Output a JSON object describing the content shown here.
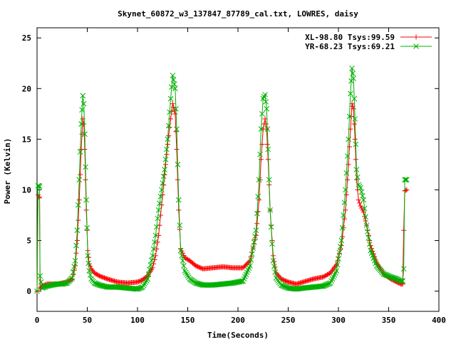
{
  "chart_data": {
    "type": "line",
    "title": "Skynet_60872_w3_137847_87789_cal.txt, LOWRES, daisy",
    "xlabel": "Time(Seconds)",
    "ylabel": "Power (Kelvin)",
    "xlim": [
      0,
      400
    ],
    "ylim": [
      -2,
      26
    ],
    "xticks": [
      0,
      50,
      100,
      150,
      200,
      250,
      300,
      350,
      400
    ],
    "yticks": [
      0,
      5,
      10,
      15,
      20,
      25
    ],
    "grid": false,
    "legend_position": "top-right",
    "series": [
      {
        "name": "XL-98.80 Tsys:99.59",
        "color": "#ff0000",
        "marker": "plus",
        "x": [
          0,
          1,
          2,
          2.5,
          3,
          5,
          10,
          15,
          20,
          25,
          30,
          35,
          38,
          40,
          42,
          44,
          45.5,
          46.5,
          47.5,
          49,
          50.5,
          52,
          54,
          57,
          62,
          70,
          80,
          90,
          100,
          105,
          110,
          115,
          118,
          121,
          124,
          127,
          130,
          133,
          135,
          137.5,
          139,
          141,
          143,
          147,
          152,
          158,
          165,
          175,
          185,
          195,
          205,
          212,
          218,
          221,
          223,
          225,
          227,
          228.5,
          230,
          232,
          235,
          238,
          243,
          250,
          258,
          265,
          275,
          285,
          292,
          298,
          303,
          307,
          310,
          312,
          313.5,
          315,
          316.5,
          318,
          320,
          322,
          325,
          328,
          332,
          338,
          345,
          352,
          358,
          362,
          364,
          365,
          366,
          368
        ],
        "y": [
          0,
          9.5,
          9.3,
          9.2,
          0.3,
          0.5,
          0.7,
          0.7,
          0.7,
          0.8,
          0.9,
          1.2,
          2.5,
          5,
          9,
          14,
          17,
          16.5,
          14,
          8,
          4,
          2.7,
          2.2,
          1.8,
          1.5,
          1.2,
          0.9,
          0.8,
          0.9,
          1.1,
          1.5,
          2.3,
          3.5,
          5.5,
          8.5,
          11.5,
          14.5,
          17,
          18.5,
          17.5,
          14,
          8,
          4.2,
          3.3,
          3,
          2.5,
          2.2,
          2.3,
          2.4,
          2.3,
          2.3,
          3,
          5.5,
          9,
          13,
          16,
          17,
          16,
          13,
          8,
          3.5,
          1.8,
          1.2,
          0.9,
          0.7,
          0.9,
          1.2,
          1.4,
          1.8,
          2.6,
          4.5,
          8,
          12.5,
          16,
          18.5,
          18,
          15,
          11,
          9,
          8.4,
          7.8,
          6.5,
          4.5,
          2.8,
          1.7,
          1.2,
          0.9,
          0.7,
          0.7,
          6,
          9.9,
          10
        ]
      },
      {
        "name": "YR-68.23 Tsys:69.21",
        "color": "#00b000",
        "marker": "cross",
        "x": [
          0,
          1,
          2,
          2.5,
          3,
          5,
          10,
          15,
          20,
          25,
          30,
          35,
          38,
          40,
          42,
          44,
          45.5,
          46.5,
          47.5,
          49,
          50.5,
          52,
          54,
          57,
          62,
          70,
          80,
          90,
          100,
          105,
          110,
          115,
          118,
          121,
          124,
          127,
          130,
          133,
          135,
          137.5,
          139,
          141,
          143,
          147,
          152,
          158,
          165,
          175,
          185,
          195,
          205,
          212,
          218,
          221,
          223,
          225,
          227,
          228.5,
          230,
          232,
          235,
          238,
          243,
          250,
          258,
          265,
          275,
          285,
          292,
          298,
          303,
          307,
          310,
          312,
          313.5,
          315,
          316.5,
          318,
          320,
          322,
          325,
          328,
          332,
          338,
          345,
          352,
          358,
          362,
          364,
          365,
          366,
          368
        ],
        "y": [
          0,
          10.4,
          10.4,
          10.3,
          1.5,
          0.3,
          0.5,
          0.6,
          0.7,
          0.7,
          0.8,
          1.3,
          3,
          6,
          11,
          16.5,
          19.3,
          18.5,
          15.5,
          9,
          3.5,
          2,
          1.2,
          0.8,
          0.6,
          0.4,
          0.4,
          0.3,
          0.2,
          0.4,
          1.2,
          3.5,
          5.5,
          8,
          10,
          12,
          15,
          19,
          21.3,
          20,
          16,
          9,
          4,
          2,
          1.2,
          0.8,
          0.6,
          0.6,
          0.7,
          0.8,
          1,
          2.5,
          6,
          11,
          16,
          19,
          19.4,
          18,
          14,
          8,
          3,
          1.3,
          0.6,
          0.3,
          0.2,
          0.3,
          0.4,
          0.5,
          0.8,
          2,
          5,
          10,
          15,
          19.5,
          22,
          21,
          17,
          12,
          10.5,
          10.2,
          9,
          6.5,
          4,
          2.5,
          1.7,
          1.4,
          1.2,
          1,
          1,
          2.2,
          11,
          11
        ]
      }
    ]
  }
}
